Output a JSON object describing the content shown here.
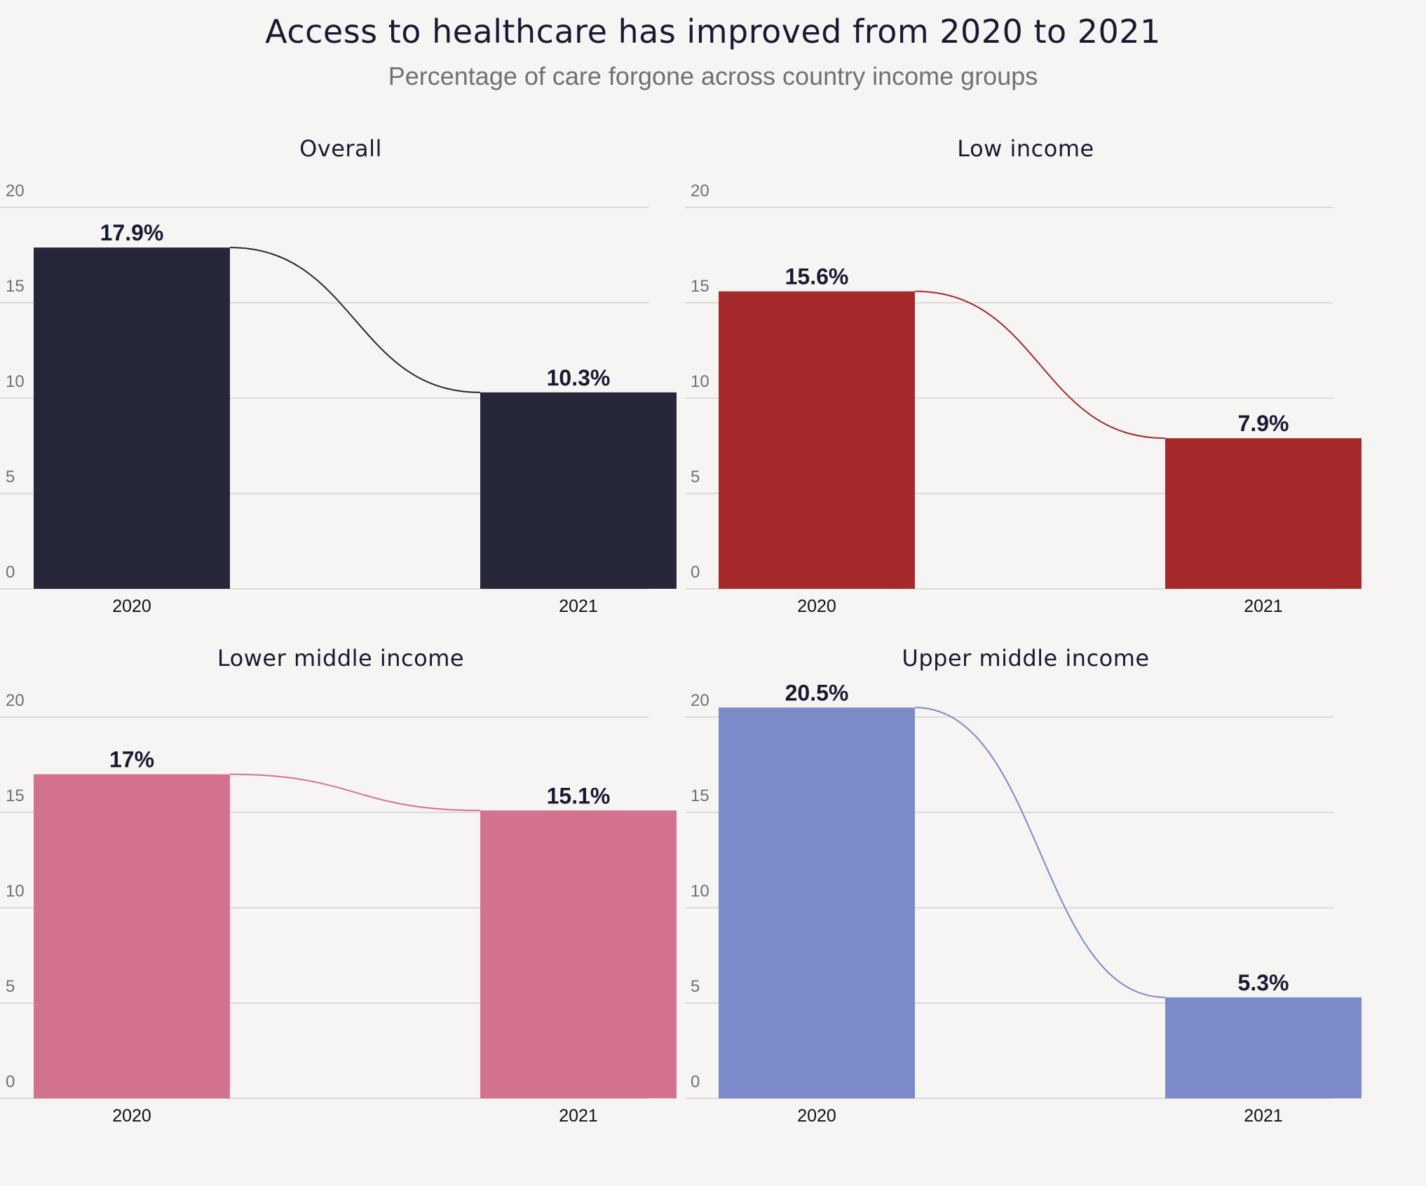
{
  "title": "Access to healthcare has improved from 2020 to 2021",
  "subtitle": "Percentage of care forgone across country income groups",
  "chart_data": [
    {
      "type": "bar",
      "title": "Overall",
      "categories": [
        "2020",
        "2021"
      ],
      "values": [
        17.9,
        10.3
      ],
      "value_labels": [
        "17.9%",
        "10.3%"
      ],
      "ylim": [
        0,
        20
      ],
      "yticks": [
        0,
        5,
        10,
        15,
        20
      ],
      "color": "#27273a"
    },
    {
      "type": "bar",
      "title": "Low income",
      "categories": [
        "2020",
        "2021"
      ],
      "values": [
        15.6,
        7.9
      ],
      "value_labels": [
        "15.6%",
        "7.9%"
      ],
      "ylim": [
        0,
        20
      ],
      "yticks": [
        0,
        5,
        10,
        15,
        20
      ],
      "color": "#a5292b"
    },
    {
      "type": "bar",
      "title": "Lower middle income",
      "categories": [
        "2020",
        "2021"
      ],
      "values": [
        17,
        15.1
      ],
      "value_labels": [
        "17%",
        "15.1%"
      ],
      "ylim": [
        0,
        20
      ],
      "yticks": [
        0,
        5,
        10,
        15,
        20
      ],
      "color": "#d3728e"
    },
    {
      "type": "bar",
      "title": "Upper middle income",
      "categories": [
        "2020",
        "2021"
      ],
      "values": [
        20.5,
        5.3
      ],
      "value_labels": [
        "20.5%",
        "5.3%"
      ],
      "ylim": [
        0,
        20
      ],
      "yticks": [
        0,
        5,
        10,
        15,
        20
      ],
      "color": "#7d8aca"
    }
  ]
}
